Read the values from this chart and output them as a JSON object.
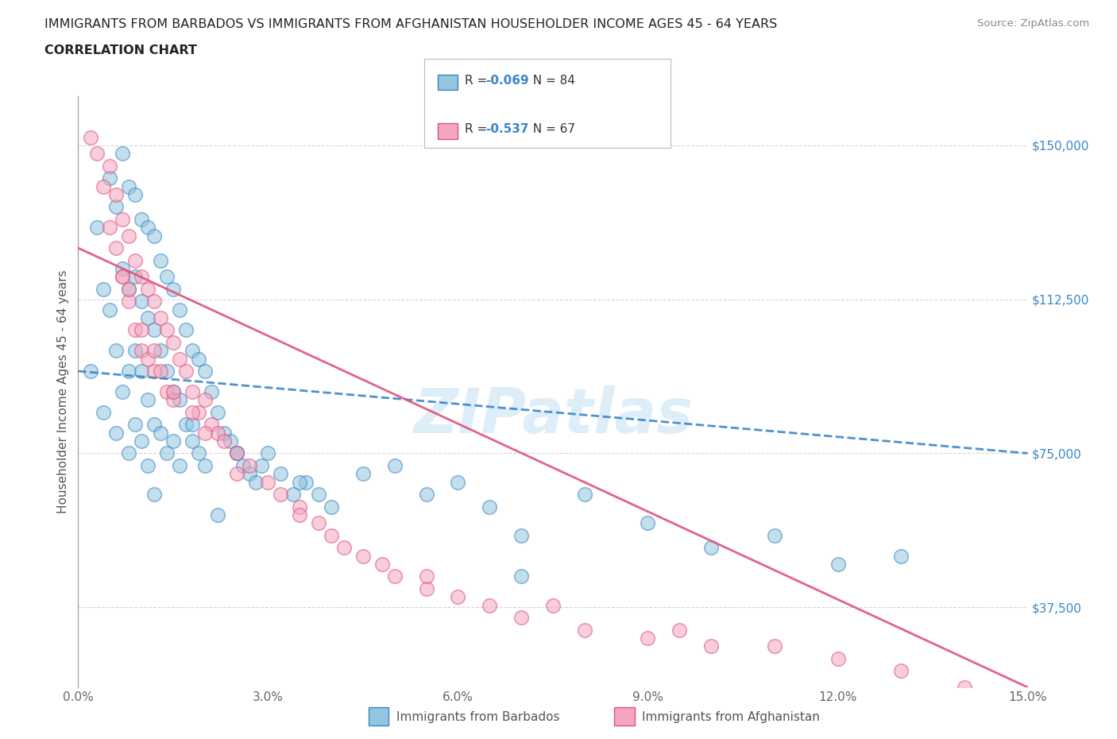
{
  "title_line1": "IMMIGRANTS FROM BARBADOS VS IMMIGRANTS FROM AFGHANISTAN HOUSEHOLDER INCOME AGES 45 - 64 YEARS",
  "title_line2": "CORRELATION CHART",
  "source_text": "Source: ZipAtlas.com",
  "ylabel": "Householder Income Ages 45 - 64 years",
  "xlim": [
    0.0,
    0.15
  ],
  "ylim": [
    18000,
    162000
  ],
  "yticks": [
    37500,
    75000,
    112500,
    150000
  ],
  "ytick_labels": [
    "$37,500",
    "$75,000",
    "$112,500",
    "$150,000"
  ],
  "xticks": [
    0.0,
    0.03,
    0.06,
    0.09,
    0.12,
    0.15
  ],
  "xtick_labels": [
    "0.0%",
    "3.0%",
    "6.0%",
    "9.0%",
    "12.0%",
    "15.0%"
  ],
  "barbados_color": "#92c5de",
  "afghanistan_color": "#f4a6c0",
  "barbados_line_color": "#3a86c8",
  "afghanistan_line_color": "#e0527a",
  "barbados_R": -0.069,
  "barbados_N": 84,
  "afghanistan_R": -0.537,
  "afghanistan_N": 67,
  "legend_label_1": "Immigrants from Barbados",
  "legend_label_2": "Immigrants from Afghanistan",
  "watermark": "ZIPatlas",
  "background_color": "#ffffff",
  "grid_color": "#cccccc",
  "barbados_x": [
    0.002,
    0.003,
    0.004,
    0.004,
    0.005,
    0.005,
    0.006,
    0.006,
    0.006,
    0.007,
    0.007,
    0.007,
    0.008,
    0.008,
    0.008,
    0.008,
    0.009,
    0.009,
    0.009,
    0.009,
    0.01,
    0.01,
    0.01,
    0.01,
    0.011,
    0.011,
    0.011,
    0.011,
    0.012,
    0.012,
    0.012,
    0.013,
    0.013,
    0.013,
    0.014,
    0.014,
    0.014,
    0.015,
    0.015,
    0.016,
    0.016,
    0.016,
    0.017,
    0.017,
    0.018,
    0.018,
    0.019,
    0.019,
    0.02,
    0.02,
    0.021,
    0.022,
    0.023,
    0.024,
    0.025,
    0.026,
    0.027,
    0.028,
    0.029,
    0.03,
    0.032,
    0.034,
    0.036,
    0.038,
    0.04,
    0.045,
    0.05,
    0.055,
    0.06,
    0.065,
    0.07,
    0.08,
    0.09,
    0.1,
    0.11,
    0.12,
    0.13,
    0.07,
    0.035,
    0.025,
    0.018,
    0.015,
    0.012,
    0.022
  ],
  "barbados_y": [
    95000,
    130000,
    115000,
    85000,
    142000,
    110000,
    135000,
    100000,
    80000,
    148000,
    120000,
    90000,
    140000,
    115000,
    95000,
    75000,
    138000,
    118000,
    100000,
    82000,
    132000,
    112000,
    95000,
    78000,
    130000,
    108000,
    88000,
    72000,
    128000,
    105000,
    82000,
    122000,
    100000,
    80000,
    118000,
    95000,
    75000,
    115000,
    90000,
    110000,
    88000,
    72000,
    105000,
    82000,
    100000,
    78000,
    98000,
    75000,
    95000,
    72000,
    90000,
    85000,
    80000,
    78000,
    75000,
    72000,
    70000,
    68000,
    72000,
    75000,
    70000,
    65000,
    68000,
    65000,
    62000,
    70000,
    72000,
    65000,
    68000,
    62000,
    55000,
    65000,
    58000,
    52000,
    55000,
    48000,
    50000,
    45000,
    68000,
    75000,
    82000,
    78000,
    65000,
    60000
  ],
  "afghanistan_x": [
    0.002,
    0.003,
    0.004,
    0.005,
    0.005,
    0.006,
    0.007,
    0.007,
    0.008,
    0.008,
    0.009,
    0.009,
    0.01,
    0.01,
    0.011,
    0.011,
    0.012,
    0.012,
    0.013,
    0.014,
    0.014,
    0.015,
    0.015,
    0.016,
    0.017,
    0.018,
    0.019,
    0.02,
    0.021,
    0.022,
    0.023,
    0.025,
    0.027,
    0.03,
    0.032,
    0.035,
    0.038,
    0.04,
    0.042,
    0.045,
    0.048,
    0.05,
    0.055,
    0.06,
    0.065,
    0.07,
    0.08,
    0.09,
    0.1,
    0.095,
    0.075,
    0.055,
    0.035,
    0.025,
    0.02,
    0.018,
    0.015,
    0.013,
    0.012,
    0.01,
    0.008,
    0.007,
    0.006,
    0.13,
    0.14,
    0.11,
    0.12
  ],
  "afghanistan_y": [
    152000,
    148000,
    140000,
    145000,
    130000,
    138000,
    132000,
    118000,
    128000,
    112000,
    122000,
    105000,
    118000,
    100000,
    115000,
    98000,
    112000,
    95000,
    108000,
    105000,
    90000,
    102000,
    88000,
    98000,
    95000,
    90000,
    85000,
    88000,
    82000,
    80000,
    78000,
    75000,
    72000,
    68000,
    65000,
    62000,
    58000,
    55000,
    52000,
    50000,
    48000,
    45000,
    42000,
    40000,
    38000,
    35000,
    32000,
    30000,
    28000,
    32000,
    38000,
    45000,
    60000,
    70000,
    80000,
    85000,
    90000,
    95000,
    100000,
    105000,
    115000,
    118000,
    125000,
    22000,
    18000,
    28000,
    25000
  ]
}
